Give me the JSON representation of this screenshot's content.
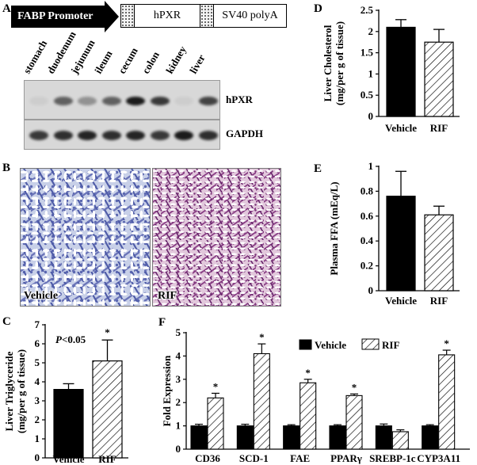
{
  "panels": {
    "A": "A",
    "B": "B",
    "C": "C",
    "D": "D",
    "E": "E",
    "F": "F"
  },
  "construct": {
    "promoter": "FABP Promoter",
    "gene": "hPXR",
    "polyA": "SV40 polyA"
  },
  "tissues": [
    "stomach",
    "duodenum",
    "jejunum",
    "ileum",
    "cecum",
    "colon",
    "kidney",
    "liver"
  ],
  "blots": [
    {
      "label": "hPXR",
      "intensities": [
        0.05,
        0.6,
        0.35,
        0.6,
        0.95,
        0.8,
        0.05,
        0.75
      ]
    },
    {
      "label": "GAPDH",
      "intensities": [
        0.8,
        0.85,
        0.9,
        0.85,
        0.9,
        0.8,
        0.95,
        0.85
      ]
    }
  ],
  "micrographs": [
    "Vehicle",
    "RIF"
  ],
  "fill_colors": {
    "vehicle": "#000000",
    "rif": "hatched"
  },
  "chart_data": [
    {
      "id": "C",
      "type": "bar",
      "categories": [
        "Vehicle",
        "RIF"
      ],
      "values": [
        3.6,
        5.1
      ],
      "errors": [
        0.3,
        1.1
      ],
      "ylabel": "Liver Triglyceride (mg/per g of tissue)",
      "ylim": [
        0,
        7
      ],
      "yticks": [
        "0",
        "1",
        "2",
        "3",
        "4",
        "5",
        "6",
        "7"
      ],
      "annotation": "P<0.05",
      "stars": [
        "",
        "*"
      ]
    },
    {
      "id": "D",
      "type": "bar",
      "categories": [
        "Vehicle",
        "RIF"
      ],
      "values": [
        2.1,
        1.75
      ],
      "errors": [
        0.18,
        0.3
      ],
      "ylabel": "Liver Cholesterol (mg/per g of tissue)",
      "ylim": [
        0,
        2.5
      ],
      "yticks": [
        "0",
        "0.5",
        "1",
        "1.5",
        "2",
        "2.5"
      ]
    },
    {
      "id": "E",
      "type": "bar",
      "categories": [
        "Vehicle",
        "RIF"
      ],
      "values": [
        0.76,
        0.61
      ],
      "errors": [
        0.2,
        0.07
      ],
      "ylabel": "Plasma FFA (mEq/L)",
      "ylim": [
        0,
        1
      ],
      "yticks": [
        "0",
        "0.2",
        "0.4",
        "0.6",
        "0.8",
        "1"
      ]
    },
    {
      "id": "F",
      "type": "bar",
      "categories": [
        "CD36",
        "SCD-1",
        "FAE",
        "PPARγ",
        "SREBP-1c",
        "CYP3A11"
      ],
      "series": [
        {
          "name": "Vehicle",
          "values": [
            1.0,
            1.0,
            1.0,
            1.0,
            1.0,
            1.0
          ],
          "errors": [
            0.07,
            0.07,
            0.05,
            0.05,
            0.08,
            0.05
          ]
        },
        {
          "name": "RIF",
          "values": [
            2.2,
            4.1,
            2.85,
            2.3,
            0.75,
            4.05
          ],
          "errors": [
            0.2,
            0.42,
            0.15,
            0.07,
            0.08,
            0.2
          ]
        }
      ],
      "stars": [
        "*",
        "*",
        "*",
        "*",
        "",
        "*"
      ],
      "ylabel": "Fold Expression",
      "ylim": [
        0,
        5
      ],
      "yticks": [
        "0",
        "1",
        "2",
        "3",
        "4",
        "5"
      ],
      "legend": "top"
    }
  ]
}
